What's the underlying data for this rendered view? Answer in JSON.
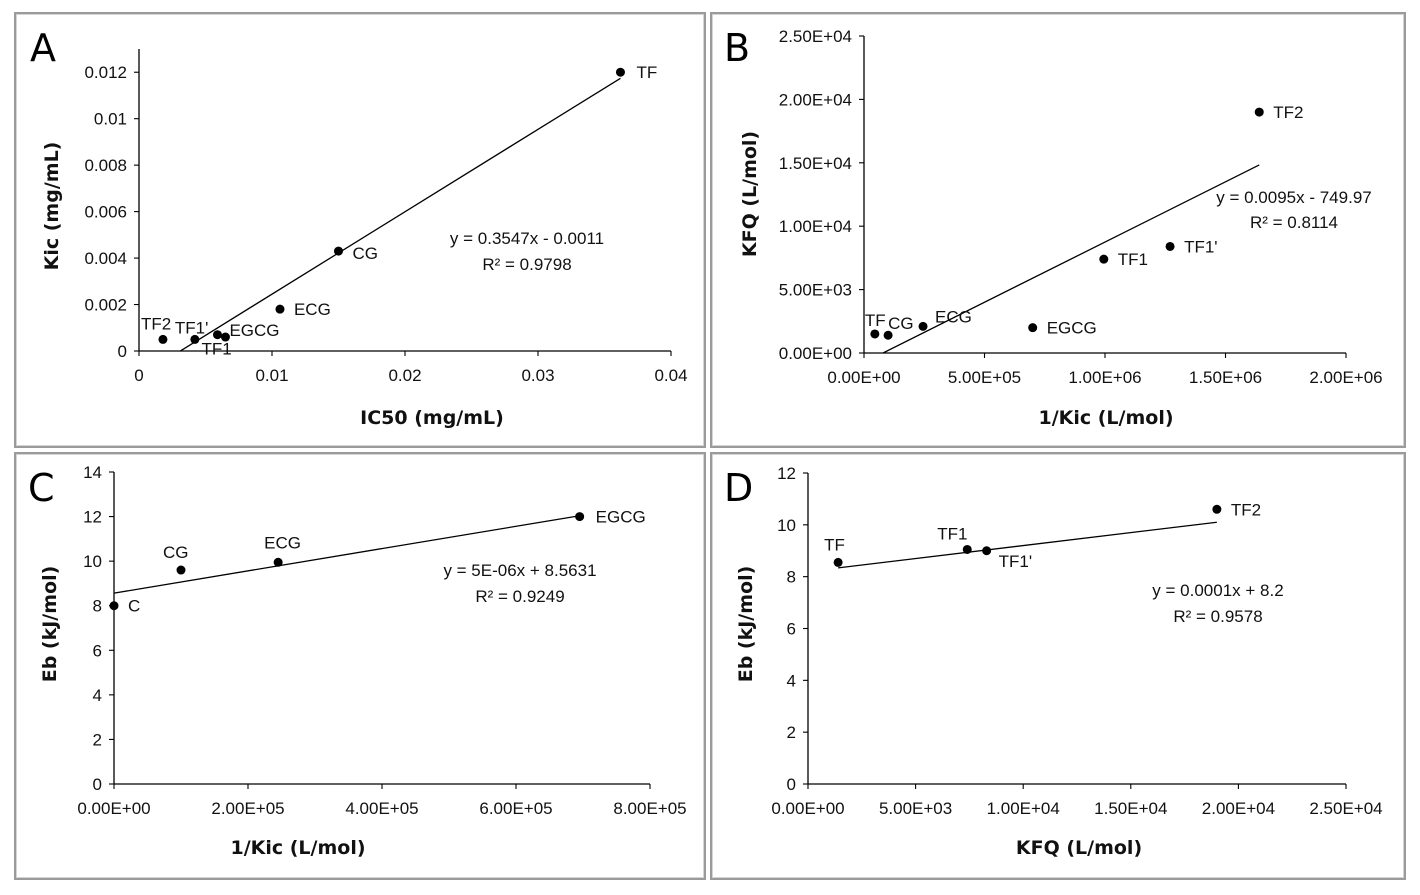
{
  "chart_data": [
    {
      "type": "scatter",
      "panel_label": "A",
      "xlabel": "IC50 (mg/mL)",
      "ylabel": "Kic (mg/mL)",
      "xlim": [
        0,
        0.04
      ],
      "ylim": [
        0,
        0.013
      ],
      "x_ticks": [
        0,
        0.01,
        0.02,
        0.03,
        0.04
      ],
      "x_tick_labels": [
        "0",
        "0.01",
        "0.02",
        "0.03",
        "0.04"
      ],
      "y_ticks": [
        0,
        0.002,
        0.004,
        0.006,
        0.008,
        0.01,
        0.012
      ],
      "y_tick_labels": [
        "0",
        "0.002",
        "0.004",
        "0.006",
        "0.008",
        "0.01",
        "0.012"
      ],
      "points": [
        {
          "label": "TF",
          "x": 0.0362,
          "y": 0.012
        },
        {
          "label": "CG",
          "x": 0.015,
          "y": 0.0043
        },
        {
          "label": "ECG",
          "x": 0.0106,
          "y": 0.0018
        },
        {
          "label": "EGCG",
          "x": 0.0065,
          "y": 0.0006
        },
        {
          "label": "TF1",
          "x": 0.0059,
          "y": 0.0007
        },
        {
          "label": "TF1'",
          "x": 0.0042,
          "y": 0.0005
        },
        {
          "label": "TF2",
          "x": 0.0018,
          "y": 0.0005
        }
      ],
      "trendline": {
        "slope": 0.3547,
        "intercept": -0.0011,
        "x_range": [
          0.0031,
          0.0362
        ]
      },
      "equation": "y = 0.3547x - 0.0011",
      "r2": "R² = 0.9798"
    },
    {
      "type": "scatter",
      "panel_label": "B",
      "xlabel": "1/Kic (L/mol)",
      "ylabel": "KFQ (L/mol)",
      "xlim": [
        0,
        2000000
      ],
      "ylim": [
        0,
        25000
      ],
      "x_ticks": [
        0,
        500000,
        1000000,
        1500000,
        2000000
      ],
      "x_tick_labels": [
        "0.00E+00",
        "5.00E+05",
        "1.00E+06",
        "1.50E+06",
        "2.00E+06"
      ],
      "y_ticks": [
        0,
        5000,
        10000,
        15000,
        20000,
        25000
      ],
      "y_tick_labels": [
        "0.00E+00",
        "5.00E+03",
        "1.00E+04",
        "1.50E+04",
        "2.00E+04",
        "2.50E+04"
      ],
      "points": [
        {
          "label": "TF2",
          "x": 1640000,
          "y": 19000
        },
        {
          "label": "TF1'",
          "x": 1270000,
          "y": 8400
        },
        {
          "label": "TF1",
          "x": 995000,
          "y": 7400
        },
        {
          "label": "EGCG",
          "x": 700000,
          "y": 2000
        },
        {
          "label": "ECG",
          "x": 245000,
          "y": 2100
        },
        {
          "label": "CG",
          "x": 100000,
          "y": 1400
        },
        {
          "label": "TF",
          "x": 45000,
          "y": 1500
        }
      ],
      "trendline": {
        "slope": 0.0095,
        "intercept": -749.97,
        "x_range": [
          80000,
          1640000
        ]
      },
      "equation": "y = 0.0095x - 749.97",
      "r2": "R² = 0.8114"
    },
    {
      "type": "scatter",
      "panel_label": "C",
      "xlabel": "1/Kic (L/mol)",
      "ylabel": "Eb (kJ/mol)",
      "xlim": [
        0,
        800000
      ],
      "ylim": [
        0,
        14
      ],
      "x_ticks": [
        0,
        200000,
        400000,
        600000,
        800000
      ],
      "x_tick_labels": [
        "0.00E+00",
        "2.00E+05",
        "4.00E+05",
        "6.00E+05",
        "8.00E+05"
      ],
      "y_ticks": [
        0,
        2,
        4,
        6,
        8,
        10,
        12,
        14
      ],
      "y_tick_labels": [
        "0",
        "2",
        "4",
        "6",
        "8",
        "10",
        "12",
        "14"
      ],
      "points": [
        {
          "label": "EGCG",
          "x": 695000,
          "y": 12.0
        },
        {
          "label": "ECG",
          "x": 245000,
          "y": 9.95
        },
        {
          "label": "CG",
          "x": 100000,
          "y": 9.6
        },
        {
          "label": "C",
          "x": 0,
          "y": 8.0
        }
      ],
      "trendline": {
        "slope": 5e-06,
        "intercept": 8.5631,
        "x_range": [
          0,
          695000
        ]
      },
      "equation": "y = 5E-06x + 8.5631",
      "r2": "R² = 0.9249"
    },
    {
      "type": "scatter",
      "panel_label": "D",
      "xlabel": "KFQ (L/mol)",
      "ylabel": "Eb (kJ/mol)",
      "xlim": [
        0,
        25000
      ],
      "ylim": [
        0,
        12
      ],
      "x_ticks": [
        0,
        5000,
        10000,
        15000,
        20000,
        25000
      ],
      "x_tick_labels": [
        "0.00E+00",
        "5.00E+03",
        "1.00E+04",
        "1.50E+04",
        "2.00E+04",
        "2.50E+04"
      ],
      "y_ticks": [
        0,
        2,
        4,
        6,
        8,
        10,
        12
      ],
      "y_tick_labels": [
        "0",
        "2",
        "4",
        "6",
        "8",
        "10",
        "12"
      ],
      "points": [
        {
          "label": "TF2",
          "x": 19000,
          "y": 10.6
        },
        {
          "label": "TF1",
          "x": 7400,
          "y": 9.05
        },
        {
          "label": "TF1'",
          "x": 8300,
          "y": 9.0
        },
        {
          "label": "TF",
          "x": 1400,
          "y": 8.55
        }
      ],
      "trendline": {
        "slope": 0.0001,
        "intercept": 8.2,
        "x_range": [
          1400,
          19000
        ]
      },
      "equation": "y = 0.0001x + 8.2",
      "r2": "R² = 0.9578"
    }
  ]
}
